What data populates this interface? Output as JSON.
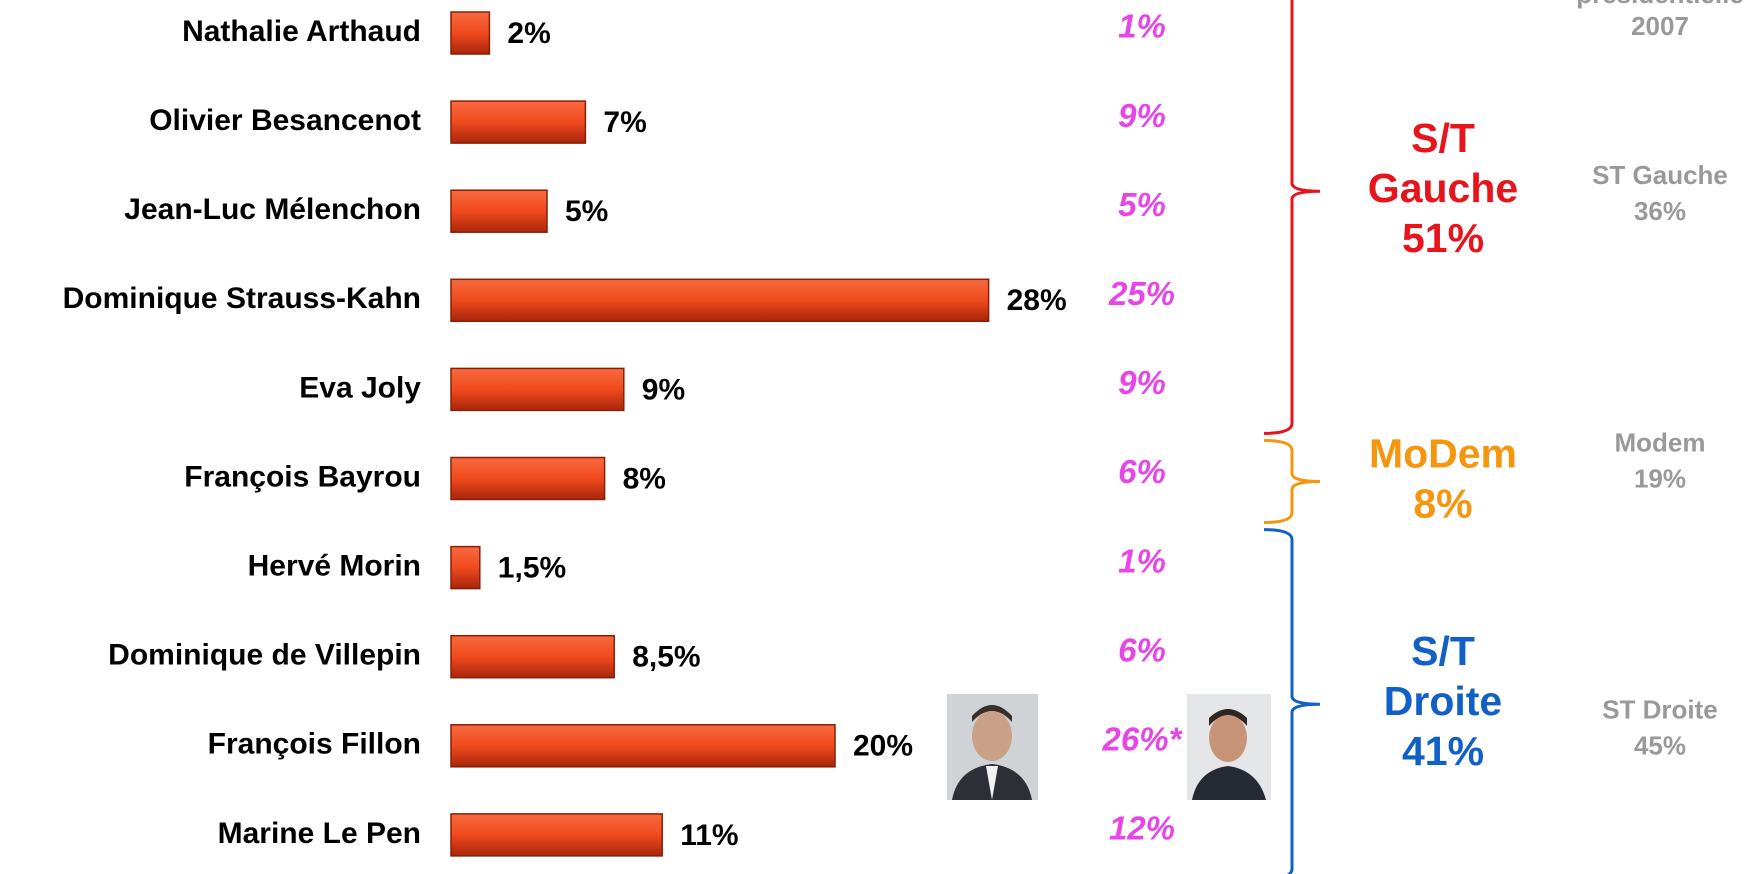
{
  "chart_data": {
    "type": "bar",
    "orientation": "horizontal",
    "categories": [
      "Nathalie Arthaud",
      "Olivier Besancenot",
      "Jean-Luc Mélenchon",
      "Dominique Strauss-Kahn",
      "Eva Joly",
      "François Bayrou",
      "Hervé Morin",
      "Dominique de Villepin",
      "François Fillon",
      "Marine Le Pen"
    ],
    "values": [
      2,
      7,
      5,
      28,
      9,
      8,
      1.5,
      8.5,
      20,
      11
    ],
    "value_labels": [
      "2%",
      "7%",
      "5%",
      "28%",
      "9%",
      "8%",
      "1,5%",
      "8,5%",
      "20%",
      "11%"
    ],
    "color": "#f04a1e",
    "comparison": {
      "color": "#e845e8",
      "values": [
        1,
        9,
        5,
        25,
        9,
        6,
        1,
        6,
        26,
        12
      ],
      "value_labels": [
        "1%",
        "9%",
        "5%",
        "25%",
        "9%",
        "6%",
        "1%",
        "6%",
        "26%*",
        "12%"
      ]
    },
    "groups": [
      {
        "lines": [
          "S/T",
          "Gauche"
        ],
        "value": 51,
        "value_label": "51%",
        "color": "#e8141c",
        "first": 0,
        "last": 4
      },
      {
        "lines": [
          "MoDem"
        ],
        "value": 8,
        "value_label": "8%",
        "color": "#f5960f",
        "first": 5,
        "last": 5
      },
      {
        "lines": [
          "S/T",
          "Droite"
        ],
        "value": 41,
        "value_label": "41%",
        "color": "#1060c8",
        "first": 6,
        "last": 9
      }
    ],
    "reference": {
      "title": [
        "présidentielle",
        "2007"
      ],
      "color": "#999999",
      "items": [
        {
          "name": "ST Gauche",
          "value": 36,
          "value_label": "36%",
          "row": 2
        },
        {
          "name": "Modem",
          "value": 19,
          "value_label": "19%",
          "row": 5
        },
        {
          "name": "ST Droite",
          "value": 45,
          "value_label": "45%",
          "row": 8
        }
      ]
    }
  }
}
